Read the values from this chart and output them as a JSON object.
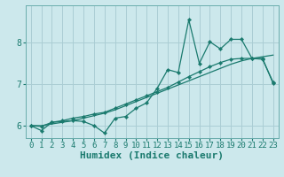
{
  "xlabel": "Humidex (Indice chaleur)",
  "bg_color": "#cce8ec",
  "grid_color": "#aacdd4",
  "line_color": "#1a7a6e",
  "xlim": [
    -0.5,
    23.5
  ],
  "ylim": [
    5.7,
    8.9
  ],
  "xticks": [
    0,
    1,
    2,
    3,
    4,
    5,
    6,
    7,
    8,
    9,
    10,
    11,
    12,
    13,
    14,
    15,
    16,
    17,
    18,
    19,
    20,
    21,
    22,
    23
  ],
  "yticks": [
    6,
    7,
    8
  ],
  "x_vals": [
    0,
    1,
    2,
    3,
    4,
    5,
    6,
    7,
    8,
    9,
    10,
    11,
    12,
    13,
    14,
    15,
    16,
    17,
    18,
    19,
    20,
    21,
    22,
    23
  ],
  "line1_jagged": [
    6.0,
    5.88,
    6.08,
    6.1,
    6.12,
    6.1,
    6.0,
    5.82,
    6.18,
    6.22,
    6.42,
    6.55,
    6.9,
    7.35,
    7.28,
    8.55,
    7.5,
    8.02,
    7.85,
    8.08,
    8.08,
    7.62,
    7.62,
    7.02
  ],
  "line2_smooth": [
    6.0,
    5.98,
    6.08,
    6.12,
    6.18,
    6.22,
    6.28,
    6.32,
    6.42,
    6.52,
    6.62,
    6.72,
    6.82,
    6.92,
    7.05,
    7.18,
    7.3,
    7.42,
    7.52,
    7.6,
    7.62,
    7.62,
    7.6,
    7.05
  ],
  "line3_diag": [
    6.0,
    6.0,
    6.04,
    6.08,
    6.12,
    6.18,
    6.24,
    6.3,
    6.38,
    6.48,
    6.58,
    6.68,
    6.78,
    6.88,
    6.98,
    7.08,
    7.18,
    7.28,
    7.38,
    7.48,
    7.56,
    7.62,
    7.66,
    7.7
  ],
  "xlabel_fontsize": 8,
  "tick_fontsize": 6.5
}
